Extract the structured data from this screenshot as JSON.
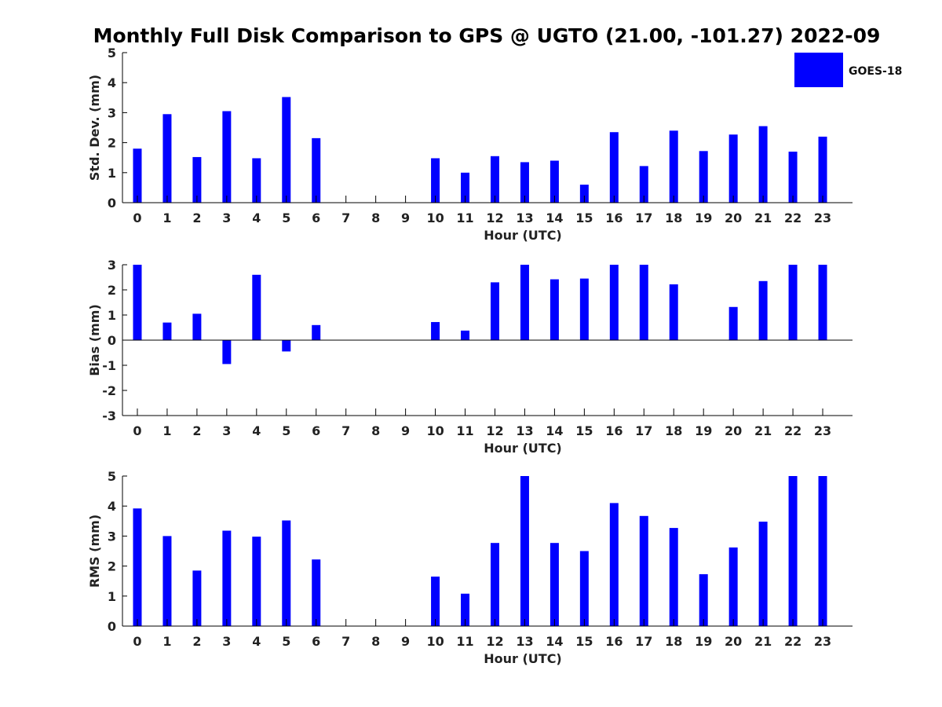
{
  "chart_data": {
    "title": "Monthly Full Disk Comparison to GPS @ UGTO (21.00, -101.27) 2022-09",
    "legend": {
      "label": "GOES-18",
      "color": "#0000ff",
      "placement": "top-right"
    },
    "panels": [
      {
        "type": "bar",
        "ylabel": "Std. Dev. (mm)",
        "xlabel": "Hour (UTC)",
        "ylim": [
          0,
          5
        ],
        "yticks": [
          0,
          1,
          2,
          3,
          4,
          5
        ],
        "categories": [
          "0",
          "1",
          "2",
          "3",
          "4",
          "5",
          "6",
          "7",
          "8",
          "9",
          "10",
          "11",
          "12",
          "13",
          "14",
          "15",
          "16",
          "17",
          "18",
          "19",
          "20",
          "21",
          "22",
          "23"
        ],
        "values": [
          1.8,
          2.95,
          1.52,
          3.05,
          1.48,
          3.52,
          2.15,
          null,
          null,
          null,
          1.48,
          1.0,
          1.55,
          1.35,
          1.4,
          0.6,
          2.35,
          1.22,
          2.4,
          1.72,
          2.27,
          2.55,
          1.7,
          2.2
        ],
        "color": "#0000ff"
      },
      {
        "type": "bar",
        "ylabel": "Bias (mm)",
        "xlabel": "Hour (UTC)",
        "ylim": [
          -3,
          3
        ],
        "yticks": [
          -3,
          -2,
          -1,
          0,
          1,
          2,
          3
        ],
        "categories": [
          "0",
          "1",
          "2",
          "3",
          "4",
          "5",
          "6",
          "7",
          "8",
          "9",
          "10",
          "11",
          "12",
          "13",
          "14",
          "15",
          "16",
          "17",
          "18",
          "19",
          "20",
          "21",
          "22",
          "23"
        ],
        "values": [
          3.0,
          0.7,
          1.05,
          -0.95,
          2.6,
          -0.45,
          0.6,
          null,
          null,
          null,
          0.72,
          0.38,
          2.3,
          3.0,
          2.42,
          2.45,
          3.0,
          3.0,
          2.22,
          0.0,
          1.32,
          2.35,
          3.0,
          3.0
        ],
        "color": "#0000ff"
      },
      {
        "type": "bar",
        "ylabel": "RMS (mm)",
        "xlabel": "Hour (UTC)",
        "ylim": [
          0,
          5
        ],
        "yticks": [
          0,
          1,
          2,
          3,
          4,
          5
        ],
        "categories": [
          "0",
          "1",
          "2",
          "3",
          "4",
          "5",
          "6",
          "7",
          "8",
          "9",
          "10",
          "11",
          "12",
          "13",
          "14",
          "15",
          "16",
          "17",
          "18",
          "19",
          "20",
          "21",
          "22",
          "23"
        ],
        "values": [
          3.92,
          3.0,
          1.85,
          3.18,
          2.98,
          3.52,
          2.22,
          null,
          null,
          null,
          1.65,
          1.08,
          2.77,
          5.0,
          2.77,
          2.5,
          4.1,
          3.67,
          3.27,
          1.73,
          2.62,
          3.48,
          5.0,
          5.0
        ],
        "color": "#0000ff"
      }
    ]
  }
}
